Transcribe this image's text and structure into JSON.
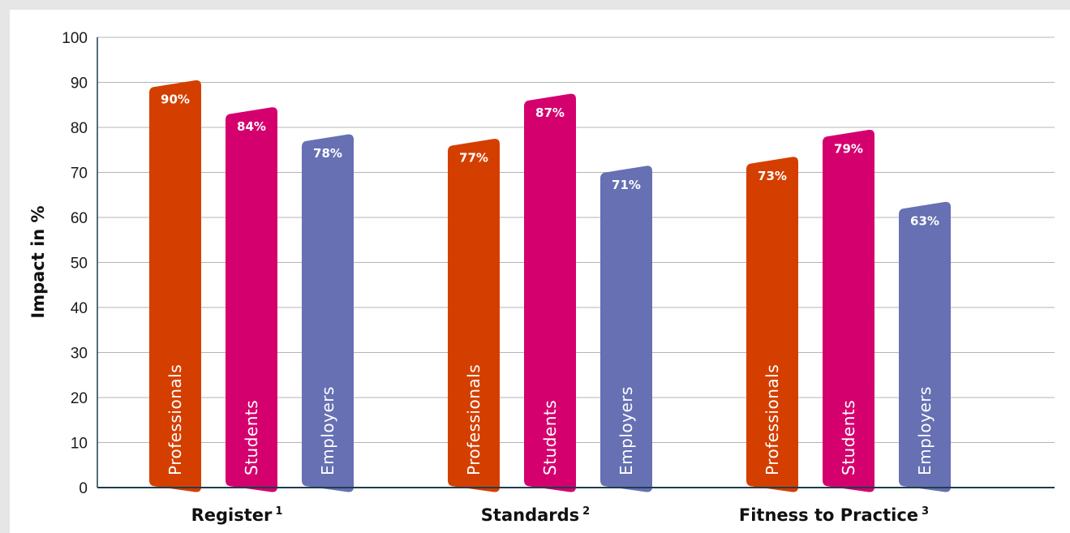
{
  "chart_data": {
    "type": "bar",
    "ylabel": "Impact in %",
    "ylim": [
      0,
      100
    ],
    "yticks": [
      0,
      10,
      20,
      30,
      40,
      50,
      60,
      70,
      80,
      90,
      100
    ],
    "grid": true,
    "categories": [
      {
        "label": "Register",
        "sup": "1"
      },
      {
        "label": "Standards",
        "sup": "2"
      },
      {
        "label": "Fitness to Practice",
        "sup": "3"
      }
    ],
    "series": [
      {
        "name": "Professionals",
        "color": "#d43f00",
        "values": [
          90,
          77,
          73
        ],
        "labels": [
          "90%",
          "77%",
          "73%"
        ]
      },
      {
        "name": "Students",
        "color": "#d4006e",
        "values": [
          84,
          87,
          79
        ],
        "labels": [
          "84%",
          "87%",
          "79%"
        ]
      },
      {
        "name": "Employers",
        "color": "#6670b3",
        "values": [
          78,
          71,
          63
        ],
        "labels": [
          "78%",
          "71%",
          "63%"
        ]
      }
    ]
  }
}
